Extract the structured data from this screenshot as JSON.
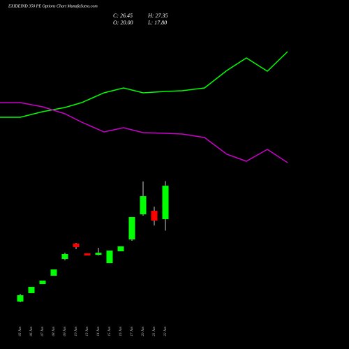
{
  "chart_data": {
    "type": "candlestick",
    "title": "EXIDEIND 350 PE Options Chart MunafaSutra.com",
    "summary": [
      "C: 26.45",
      "H: 27.35",
      "O: 20.00",
      "L: 17.80"
    ],
    "categories": [
      "03 Jan",
      "06 Jan",
      "07 Jan",
      "08 Jan",
      "09 Jan",
      "10 Jan",
      "13 Jan",
      "14 Jan",
      "15 Jan",
      "16 Jan",
      "17 Jan",
      "20 Jan",
      "21 Jan",
      "22 Jan"
    ],
    "open": [
      4.14,
      5.75,
      7.5,
      9.11,
      12.34,
      15.29,
      13.41,
      13.14,
      11.53,
      13.82,
      16.1,
      20.94,
      21.61,
      20.0
    ],
    "high": [
      5.62,
      6.96,
      8.17,
      10.32,
      13.54,
      15.43,
      13.41,
      14.49,
      13.95,
      14.76,
      20.4,
      27.26,
      22.42,
      27.35
    ],
    "low": [
      4.01,
      5.75,
      7.5,
      9.11,
      12.07,
      14.22,
      13.01,
      13.01,
      11.53,
      13.82,
      15.83,
      20.67,
      18.79,
      17.8
    ],
    "close": [
      5.35,
      6.96,
      8.17,
      10.32,
      13.28,
      14.62,
      13.01,
      13.54,
      13.95,
      14.76,
      20.4,
      24.43,
      19.73,
      26.45
    ],
    "up_color": "#00ff00",
    "down_color": "#ff0000",
    "ylim": [
      0,
      35
    ],
    "lines": {
      "xlim": [
        0,
        500
      ],
      "ylim": [
        0,
        500
      ],
      "x": [
        0,
        29,
        61,
        93,
        117,
        149,
        177,
        205,
        237,
        261,
        293,
        325,
        353,
        383,
        412
      ],
      "series": [
        {
          "color": "#00ff00",
          "values": [
            332,
            332,
            340,
            346,
            353,
            367,
            374,
            367,
            369,
            370,
            374,
            399,
            417,
            398,
            426
          ]
        },
        {
          "color": "#cc00cc",
          "values": [
            353,
            353,
            347,
            337,
            325,
            311,
            317,
            310,
            309,
            308,
            303,
            279,
            269,
            286,
            267
          ]
        }
      ]
    }
  }
}
